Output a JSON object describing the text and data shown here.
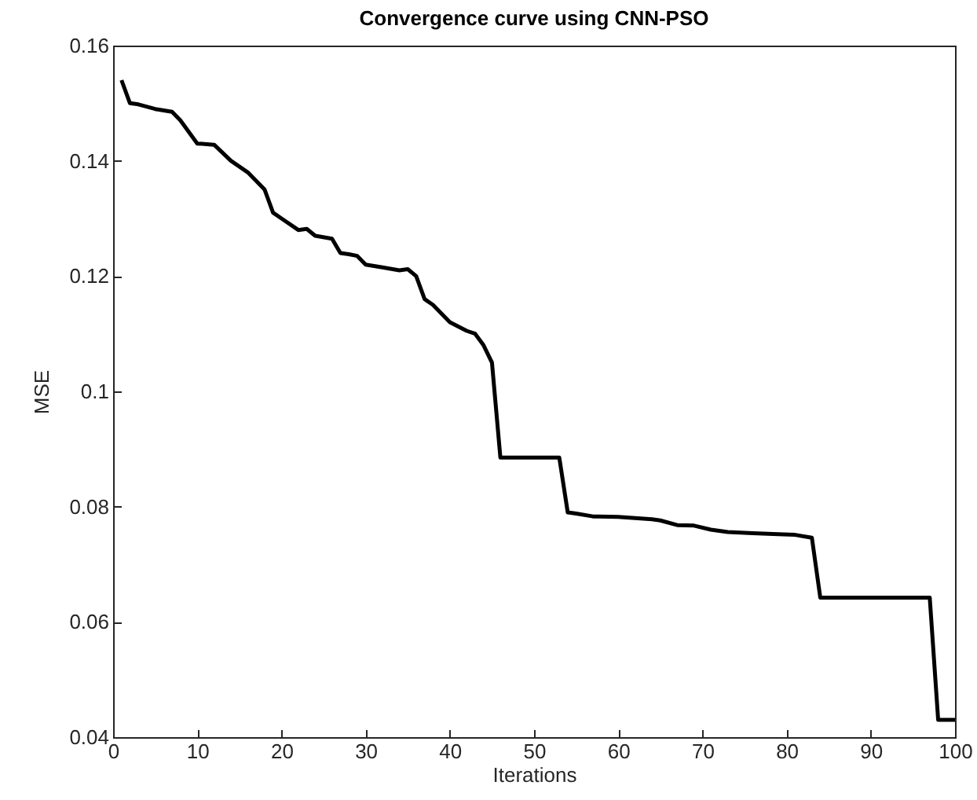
{
  "chart_data": {
    "type": "line",
    "title": "Convergence curve  using CNN-PSO",
    "xlabel": "Iterations",
    "ylabel": "MSE",
    "x": [
      1,
      2,
      3,
      5,
      7,
      8,
      9,
      10,
      12,
      14,
      16,
      18,
      19,
      20,
      22,
      23,
      24,
      26,
      27,
      28,
      29,
      30,
      32,
      34,
      35,
      36,
      37,
      38,
      40,
      42,
      43,
      44,
      45,
      46,
      53,
      54,
      55,
      57,
      60,
      64,
      65,
      67,
      69,
      71,
      73,
      76,
      79,
      81,
      83,
      84,
      97,
      98,
      100
    ],
    "series": [
      {
        "color": "#000000",
        "values": [
          0.154,
          0.15,
          0.1498,
          0.149,
          0.1485,
          0.147,
          0.145,
          0.143,
          0.1428,
          0.14,
          0.138,
          0.135,
          0.131,
          0.13,
          0.128,
          0.1282,
          0.127,
          0.1265,
          0.124,
          0.1238,
          0.1235,
          0.122,
          0.1215,
          0.121,
          0.1212,
          0.12,
          0.116,
          0.115,
          0.112,
          0.1105,
          0.11,
          0.108,
          0.105,
          0.0885,
          0.0885,
          0.079,
          0.0788,
          0.0783,
          0.0782,
          0.0778,
          0.0776,
          0.0768,
          0.0767,
          0.076,
          0.0756,
          0.0754,
          0.0752,
          0.0751,
          0.0746,
          0.0642,
          0.0642,
          0.043,
          0.043
        ]
      }
    ],
    "xlim": [
      0,
      100
    ],
    "xticks": [
      0,
      10,
      20,
      30,
      40,
      50,
      60,
      70,
      80,
      90,
      100
    ],
    "ylim": [
      0.04,
      0.16
    ],
    "yticks": [
      0.04,
      0.06,
      0.08,
      0.1,
      0.12,
      0.14,
      0.16
    ],
    "grid": false,
    "legend": false,
    "marker": "none",
    "line_style": "solid"
  }
}
